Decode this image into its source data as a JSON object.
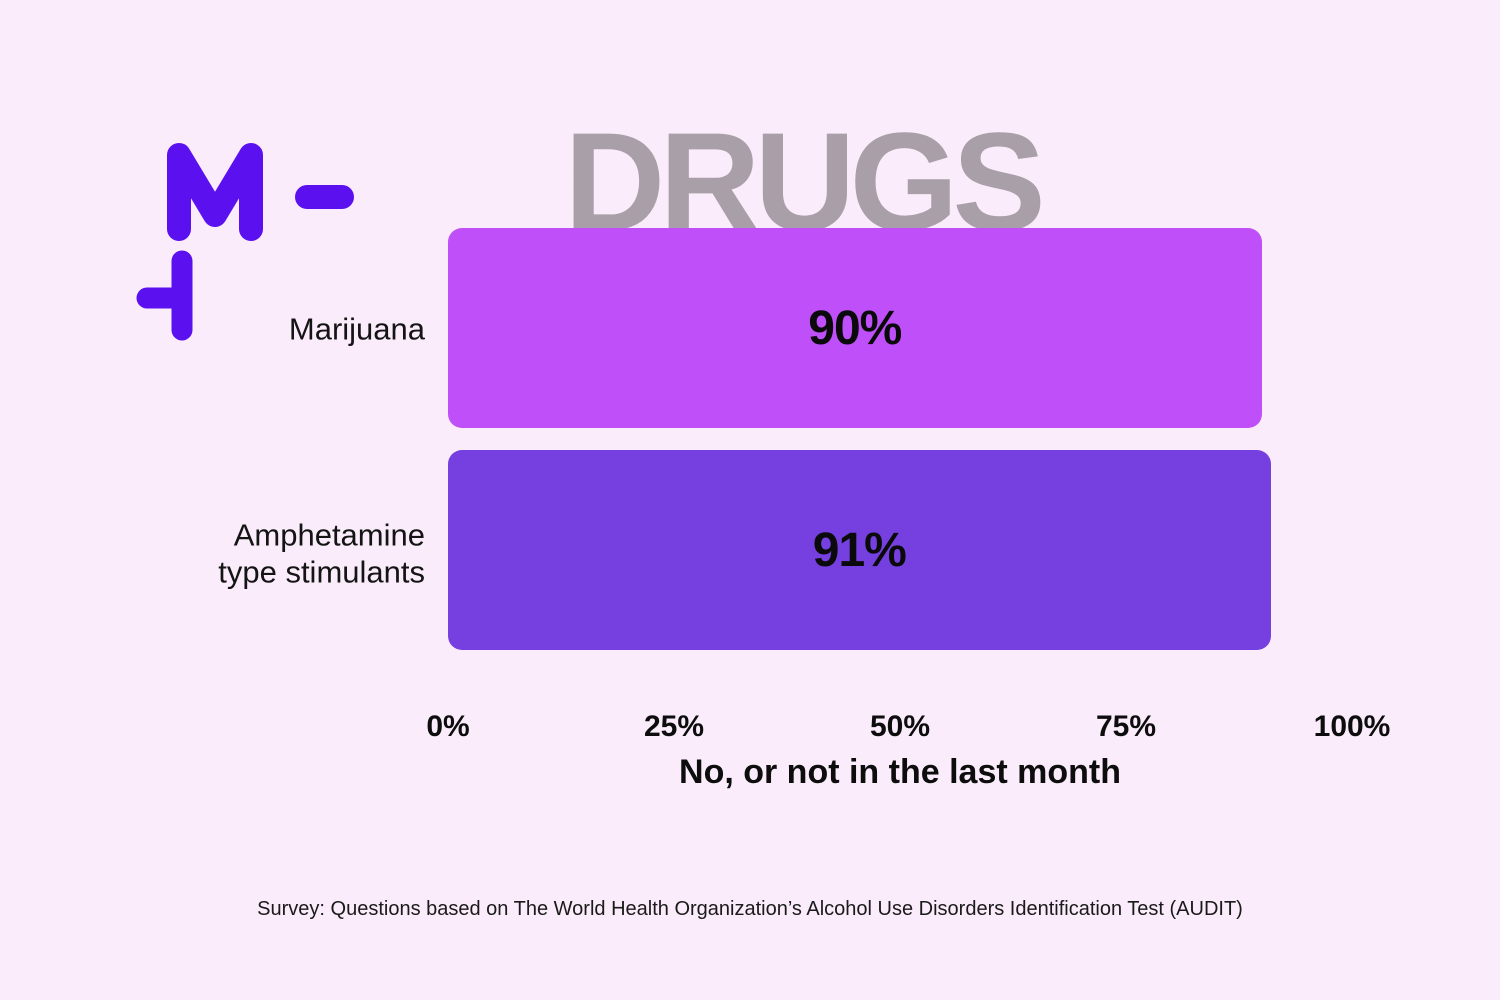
{
  "brand": {
    "logo_color": "#5b10f0",
    "logo_description": "purple M with dash, and left-tack mark below"
  },
  "colors": {
    "background": "#faecfa",
    "title_gray": "#a89fa9",
    "text_black": "#0d0d0d",
    "bar_marijuana": "#bf4ff8",
    "bar_amphetamine": "#7640e1"
  },
  "chart_data": {
    "type": "bar",
    "orientation": "horizontal",
    "title": "DRUGS",
    "categories": [
      "Marijuana",
      "Amphetamine type stimulants"
    ],
    "values": [
      90,
      91
    ],
    "value_labels": [
      "90%",
      "91%"
    ],
    "bar_colors": [
      "#bf4ff8",
      "#7640e1"
    ],
    "xlabel": "No, or not in the last month",
    "x_ticks": [
      "0%",
      "25%",
      "50%",
      "75%",
      "100%"
    ],
    "xlim": [
      0,
      100
    ],
    "grid": false,
    "legend": false,
    "footer": "Survey: Questions based on The World Health Organization’s Alcohol Use Disorders Identification Test (AUDIT)"
  }
}
